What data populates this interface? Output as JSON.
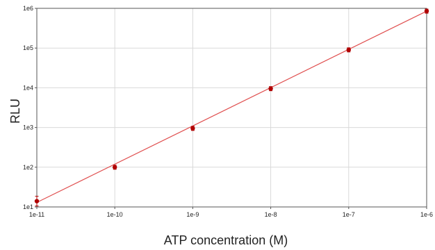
{
  "chart_data": {
    "type": "line",
    "title": "",
    "xlabel": "ATP concentration (M)",
    "ylabel": "RLU",
    "x_scale": "log",
    "y_scale": "log",
    "xlim": [
      1e-11,
      1e-06
    ],
    "ylim": [
      10,
      1000000
    ],
    "x_ticks": [
      1e-11,
      1e-10,
      1e-09,
      1e-08,
      1e-07,
      1e-06
    ],
    "x_tick_labels": [
      "1e-11",
      "1e-10",
      "1e-9",
      "1e-8",
      "1e-7",
      "1e-6"
    ],
    "y_ticks": [
      10,
      100,
      1000,
      10000,
      100000,
      1000000
    ],
    "y_tick_labels": [
      "1e1",
      "1e2",
      "1e3",
      "1e4",
      "1e5",
      "1e6"
    ],
    "grid": true,
    "legend": "none",
    "colors": {
      "series": "#b00000",
      "fit_line": "#e05050",
      "grid": "#d9d9d9",
      "frame": "#555555"
    },
    "series": [
      {
        "x": [
          1e-11,
          1e-10,
          1e-09,
          1e-08,
          1e-07,
          1e-06
        ],
        "y": [
          14,
          100,
          950,
          9500,
          90000,
          850000
        ],
        "error_bars": true
      }
    ],
    "fit_line": {
      "x": [
        1e-11,
        1e-06
      ],
      "y": [
        13,
        850000
      ]
    }
  }
}
